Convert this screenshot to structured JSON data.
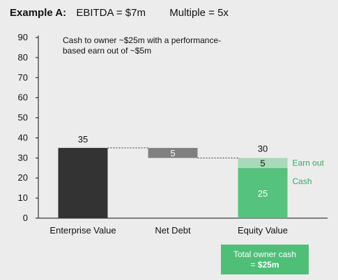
{
  "header": {
    "example_label": "Example A:",
    "ebitda": "EBITDA = $7m",
    "multiple": "Multiple = 5x"
  },
  "annotation_lines": [
    "Cash to owner ~$25m with a performance-",
    "based earn out of ~$5m"
  ],
  "owner_box": {
    "line1": "Total owner cash",
    "line2_prefix": "= ",
    "line2_value": "$25m"
  },
  "colors": {
    "enterprise": "#333333",
    "net_debt": "#808080",
    "cash": "#55c27e",
    "earn_out": "#a8d9b8",
    "accent_text": "#3aa865",
    "background": "#ececec"
  },
  "chart_data": {
    "type": "bar",
    "subtype": "waterfall",
    "categories": [
      "Enterprise Value",
      "Net Debt",
      "Equity Value"
    ],
    "ylim": [
      0,
      90
    ],
    "yticks": [
      0,
      10,
      20,
      30,
      40,
      50,
      60,
      70,
      80,
      90
    ],
    "grid": false,
    "bars": [
      {
        "category": "Enterprise Value",
        "base": 0,
        "value": 35,
        "label": "35",
        "color_key": "enterprise"
      },
      {
        "category": "Net Debt",
        "base": 30,
        "value": 5,
        "label": "5",
        "color_key": "net_debt"
      },
      {
        "category": "Equity Value",
        "base": 0,
        "value": 25,
        "label": "25",
        "color_key": "cash",
        "side_label": "Cash"
      },
      {
        "category": "Equity Value",
        "base": 25,
        "value": 5,
        "label": "5",
        "color_key": "earn_out",
        "side_label": "Earn out"
      }
    ],
    "totals": [
      {
        "category": "Equity Value",
        "value": 30,
        "label": "30"
      }
    ],
    "connectors": [
      {
        "from": "Enterprise Value",
        "to": "Net Debt",
        "y": 35
      },
      {
        "from": "Net Debt",
        "to": "Equity Value",
        "y": 30
      }
    ]
  }
}
